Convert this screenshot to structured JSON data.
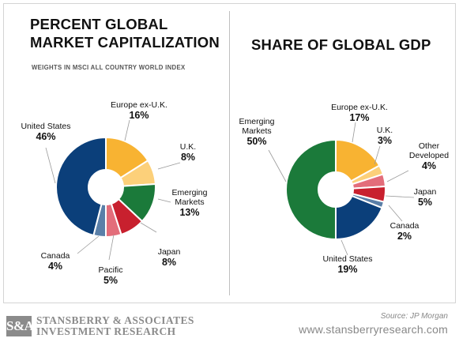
{
  "chart_data": [
    {
      "type": "pie",
      "title_lines": [
        "PERCENT GLOBAL",
        "MARKET CAPITALIZATION"
      ],
      "subtitle": "WEIGHTS IN MSCI ALL COUNTRY WORLD INDEX",
      "slices": [
        {
          "label": "Europe ex-U.K.",
          "display": "16%",
          "value": 16,
          "color": "#f8b332"
        },
        {
          "label": "U.K.",
          "display": "8%",
          "value": 8,
          "color": "#fcd07a"
        },
        {
          "label": "Emerging Markets",
          "label_lines": [
            "Emerging",
            "Markets"
          ],
          "display": "13%",
          "value": 13,
          "color": "#1b7a3a"
        },
        {
          "label": "Japan",
          "display": "8%",
          "value": 8,
          "color": "#c8202e"
        },
        {
          "label": "Pacific",
          "display": "5%",
          "value": 5,
          "color": "#e36d7a"
        },
        {
          "label": "Canada",
          "display": "4%",
          "value": 4,
          "color": "#5a7fa8"
        },
        {
          "label": "United States",
          "display": "46%",
          "value": 46,
          "color": "#0b3f7a"
        }
      ]
    },
    {
      "type": "pie",
      "title_lines": [
        "SHARE OF GLOBAL GDP"
      ],
      "slices": [
        {
          "label": "Europe ex-U.K.",
          "display": "17%",
          "value": 17,
          "color": "#f8b332"
        },
        {
          "label": "U.K.",
          "display": "3%",
          "value": 3,
          "color": "#fcd07a"
        },
        {
          "label": "Other Developed",
          "label_lines": [
            "Other",
            "Developed"
          ],
          "display": "4%",
          "value": 4,
          "color": "#e36d7a"
        },
        {
          "label": "Japan",
          "display": "5%",
          "value": 5,
          "color": "#c8202e"
        },
        {
          "label": "Canada",
          "display": "2%",
          "value": 2,
          "color": "#5a7fa8"
        },
        {
          "label": "United States",
          "display": "19%",
          "value": 19,
          "color": "#0b3f7a"
        },
        {
          "label": "Emerging Markets",
          "label_lines": [
            "Emerging",
            "Markets"
          ],
          "display": "50%",
          "value": 50,
          "color": "#1b7a3a"
        }
      ]
    }
  ],
  "footer": {
    "logo_mark": "S&A",
    "brand_line1": "STANSBERRY & ASSOCIATES",
    "brand_line2": "INVESTMENT RESEARCH",
    "source": "Source: JP Morgan",
    "url": "www.stansberryresearch.com"
  }
}
